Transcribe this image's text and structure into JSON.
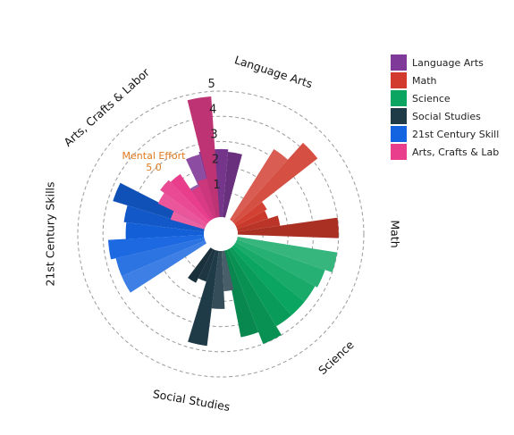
{
  "chart_data": {
    "type": "polar-bar",
    "radial_axis": {
      "range": [
        0,
        5
      ],
      "ticks": [
        1,
        2,
        3,
        4,
        5
      ],
      "tick_labels": [
        "1",
        "2",
        "3",
        "4",
        "5"
      ],
      "grid": "dashed"
    },
    "angular_axis": {
      "direction": "clockwise",
      "dimension_labels": [
        "Language Arts",
        "Math",
        "Science",
        "Social Studies",
        "21st Century Skills",
        "Arts, Crafts & Labor"
      ]
    },
    "legend": {
      "placement": "top-right",
      "entries": [
        "Language Arts",
        "Math",
        "Science",
        "Social Studies",
        "21st Century Skill",
        "Arts, Crafts & Lab"
      ]
    },
    "series": [
      {
        "name": "Language Arts",
        "color": "#7f3a99",
        "values": [
          1.5,
          2.6,
          2.7,
          2.7,
          2.6
        ]
      },
      {
        "name": "Math",
        "color": "#d13a2c",
        "values": [
          3.3,
          4.2,
          1.4,
          1.3,
          1.7,
          4.0
        ]
      },
      {
        "name": "Science",
        "color": "#0aa560",
        "values": [
          4.0,
          3.7,
          3.6,
          3.6,
          3.6,
          4.0,
          3.5
        ]
      },
      {
        "name": "Social Studies",
        "color": "#203b48",
        "values": [
          1.6,
          2.3,
          3.8,
          1.3,
          1.5
        ]
      },
      {
        "name": "21st Century Skills",
        "color": "#1463e0",
        "values": [
          3.6,
          3.6,
          3.8,
          3.1,
          3.2,
          3.8
        ]
      },
      {
        "name": "Arts, Crafts & Labor",
        "color": "#e83e8c",
        "values": [
          1.4,
          2.1,
          2.3,
          2.2,
          1.4,
          1.6,
          4.8
        ]
      }
    ],
    "annotations": [
      {
        "text": "Mental Effort",
        "value": "5.0",
        "color": "#e07a1f"
      }
    ]
  }
}
